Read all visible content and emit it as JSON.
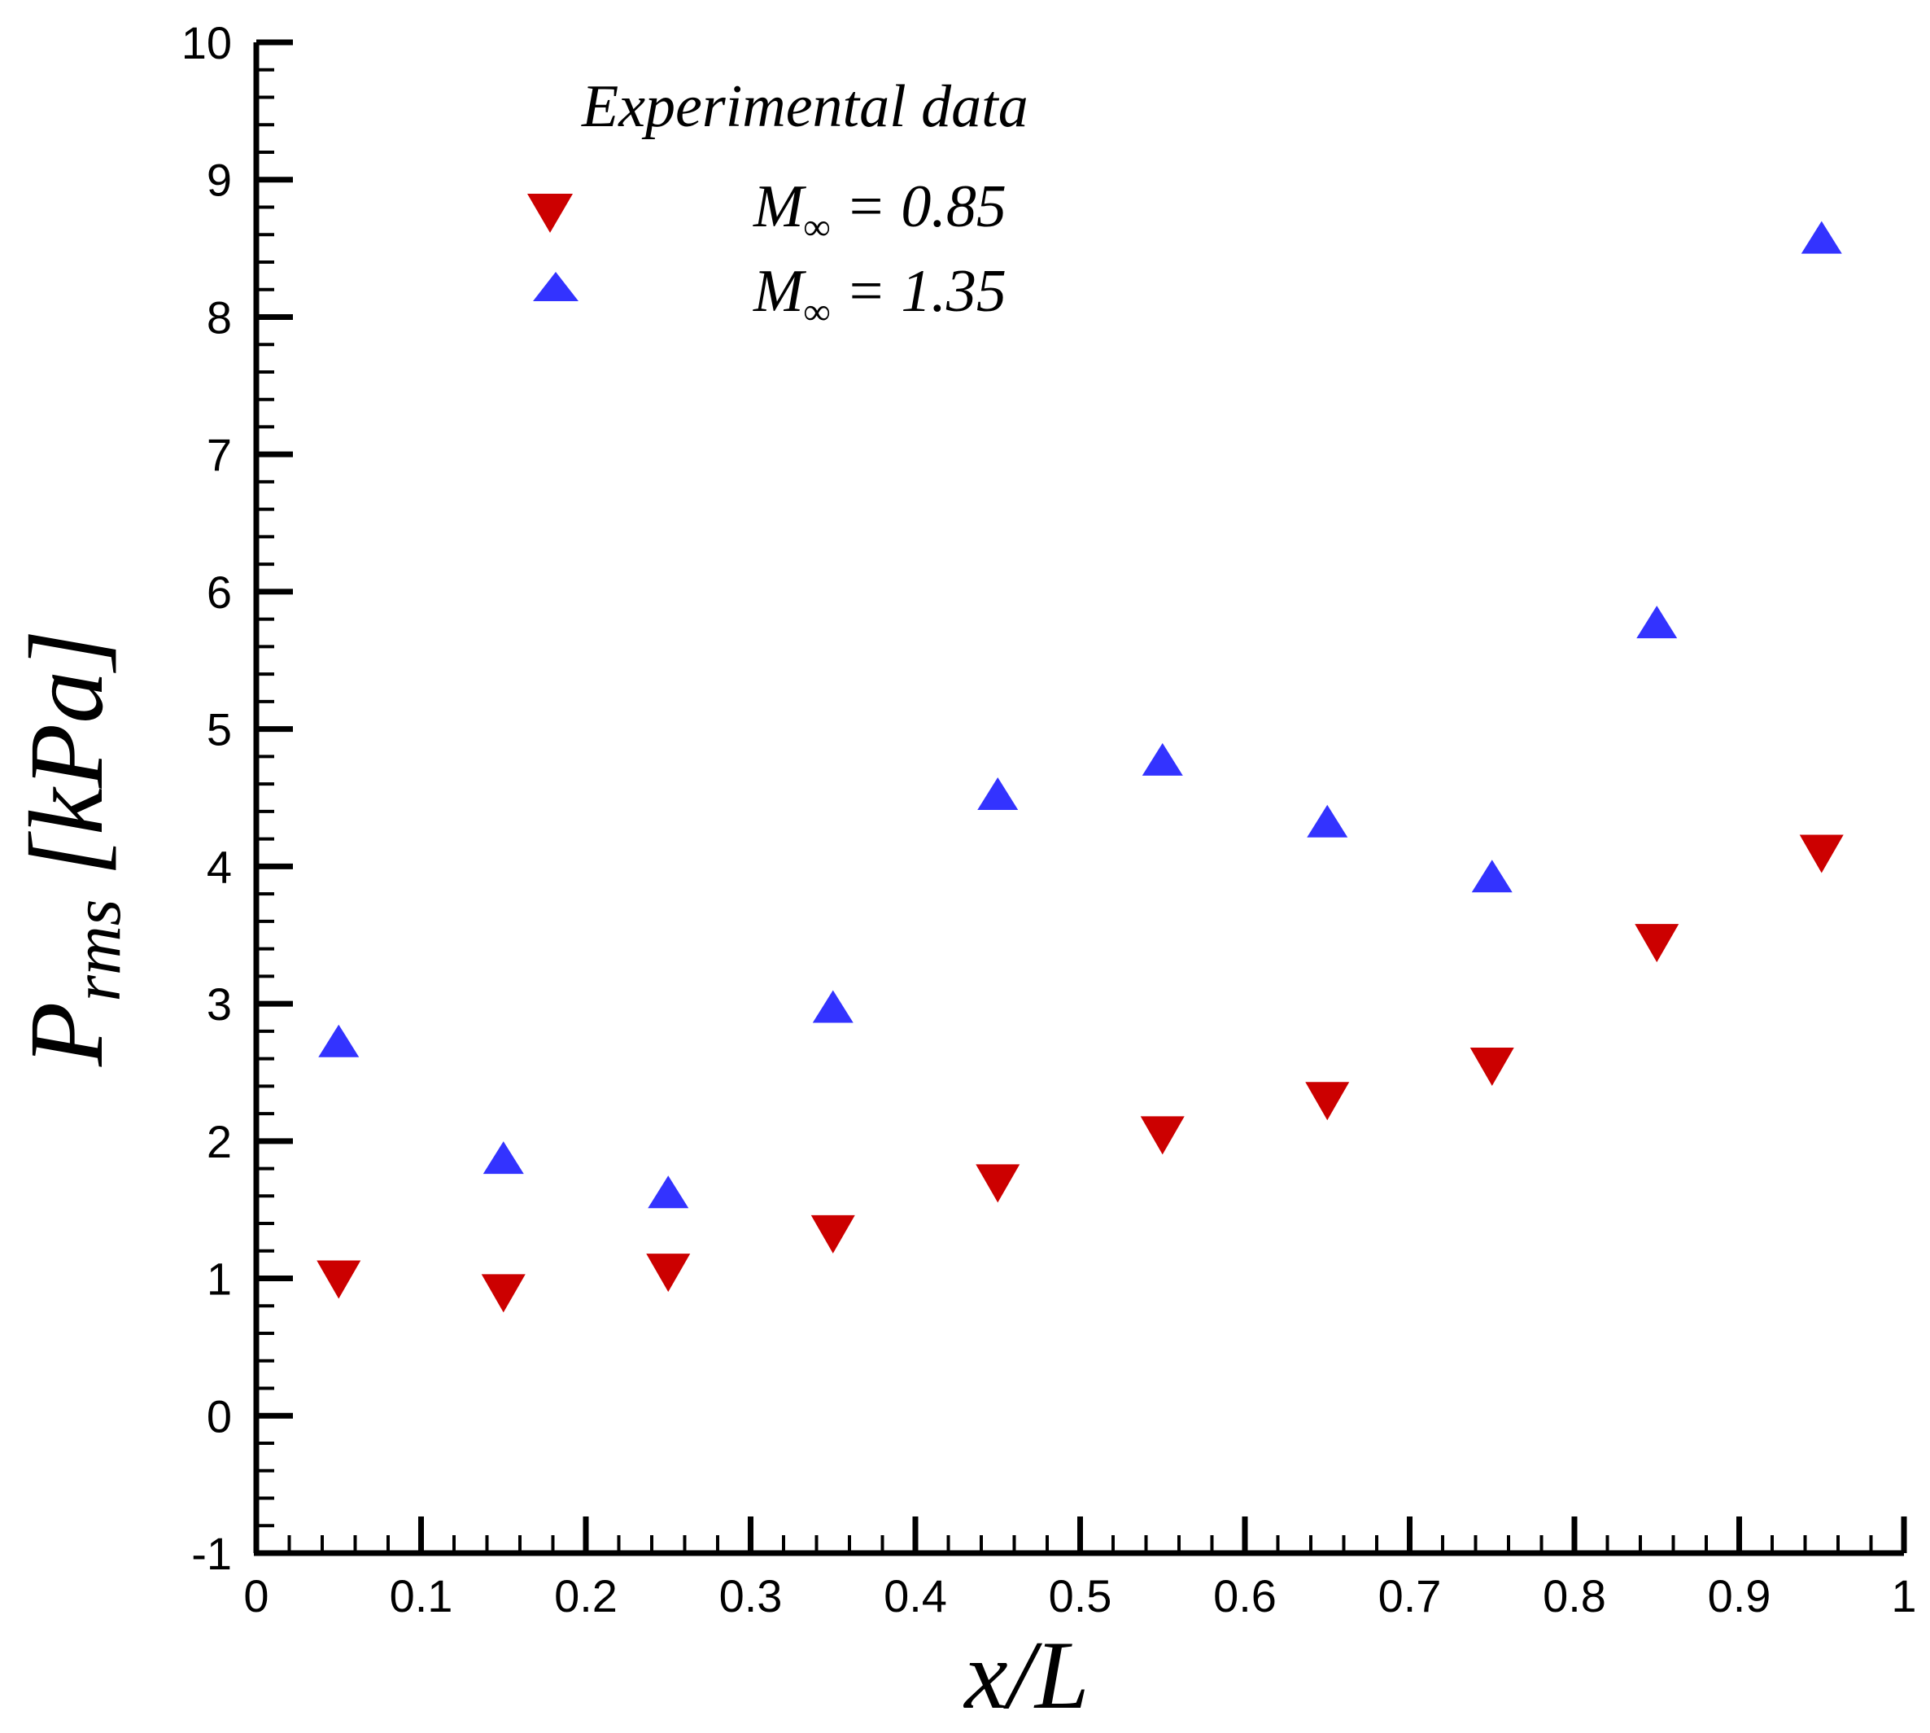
{
  "chart_data": {
    "type": "scatter",
    "title": "",
    "xlabel": "x/L",
    "ylabel": {
      "base": "P",
      "subscript": "rms",
      "unit": "[kPa]"
    },
    "xlim": [
      0,
      1
    ],
    "ylim": [
      -1,
      10
    ],
    "x_major_ticks": [
      0,
      0.1,
      0.2,
      0.3,
      0.4,
      0.5,
      0.6,
      0.7,
      0.8,
      0.9,
      1
    ],
    "x_tick_labels": [
      "0",
      "0.1",
      "0.2",
      "0.3",
      "0.4",
      "0.5",
      "0.6",
      "0.7",
      "0.8",
      "0.9",
      "1"
    ],
    "x_minor_step": 0.02,
    "y_major_ticks": [
      -1,
      0,
      1,
      2,
      3,
      4,
      5,
      6,
      7,
      8,
      9,
      10
    ],
    "y_tick_labels": [
      "-1",
      "0",
      "1",
      "2",
      "3",
      "4",
      "5",
      "6",
      "7",
      "8",
      "9",
      "10"
    ],
    "y_minor_step": 0.2,
    "grid": false,
    "legend": {
      "title": "Experimental data",
      "placement": "top-left"
    },
    "series": [
      {
        "name": "M∞ = 0.85",
        "label_base": "M",
        "label_sub": "∞",
        "label_rest": " = 0.85",
        "marker": "triangle-down",
        "color": "#cc0000",
        "x": [
          0.05,
          0.15,
          0.25,
          0.35,
          0.45,
          0.55,
          0.65,
          0.75,
          0.85,
          0.95
        ],
        "y": [
          1.0,
          0.9,
          1.05,
          1.33,
          1.7,
          2.05,
          2.3,
          2.55,
          3.45,
          4.1
        ]
      },
      {
        "name": "M∞ = 1.35",
        "label_base": "M",
        "label_sub": "∞",
        "label_rest": " = 1.35",
        "marker": "triangle-up",
        "color": "#3333ff",
        "x": [
          0.05,
          0.15,
          0.25,
          0.35,
          0.45,
          0.55,
          0.65,
          0.75,
          0.85,
          0.95
        ],
        "y": [
          2.7,
          1.85,
          1.6,
          2.95,
          4.5,
          4.75,
          4.3,
          3.9,
          5.75,
          8.55
        ]
      }
    ]
  }
}
